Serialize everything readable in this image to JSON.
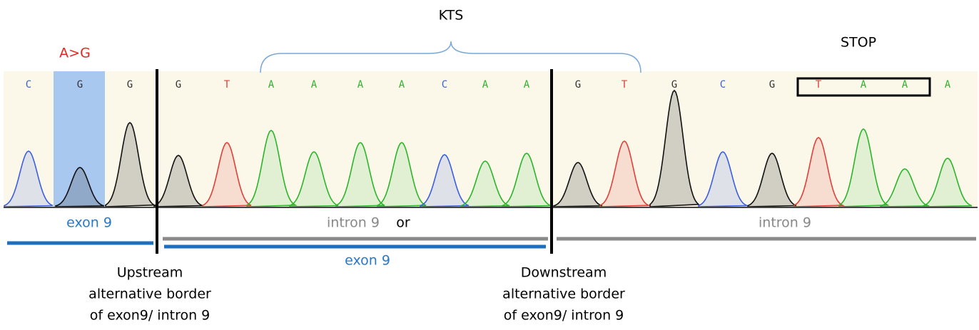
{
  "header": {
    "kts": "KTS",
    "stop": "STOP",
    "mutation": "A>G"
  },
  "bases": [
    "C",
    "G",
    "G",
    "G",
    "T",
    "A",
    "A",
    "A",
    "A",
    "C",
    "A",
    "A",
    "G",
    "T",
    "G",
    "C",
    "G",
    "T",
    "A",
    "A",
    "A"
  ],
  "labels": {
    "exon_left": "exon 9",
    "intron_middle": "intron 9",
    "intron_middle_or": "or",
    "exon_middle": "exon 9",
    "intron_right": "intron 9"
  },
  "borders": {
    "upstream": [
      "Upstream",
      "alternative border",
      "of exon9/ intron 9"
    ],
    "downstream": [
      "Downstream",
      "alternative border",
      "of exon9/ intron 9"
    ]
  }
}
